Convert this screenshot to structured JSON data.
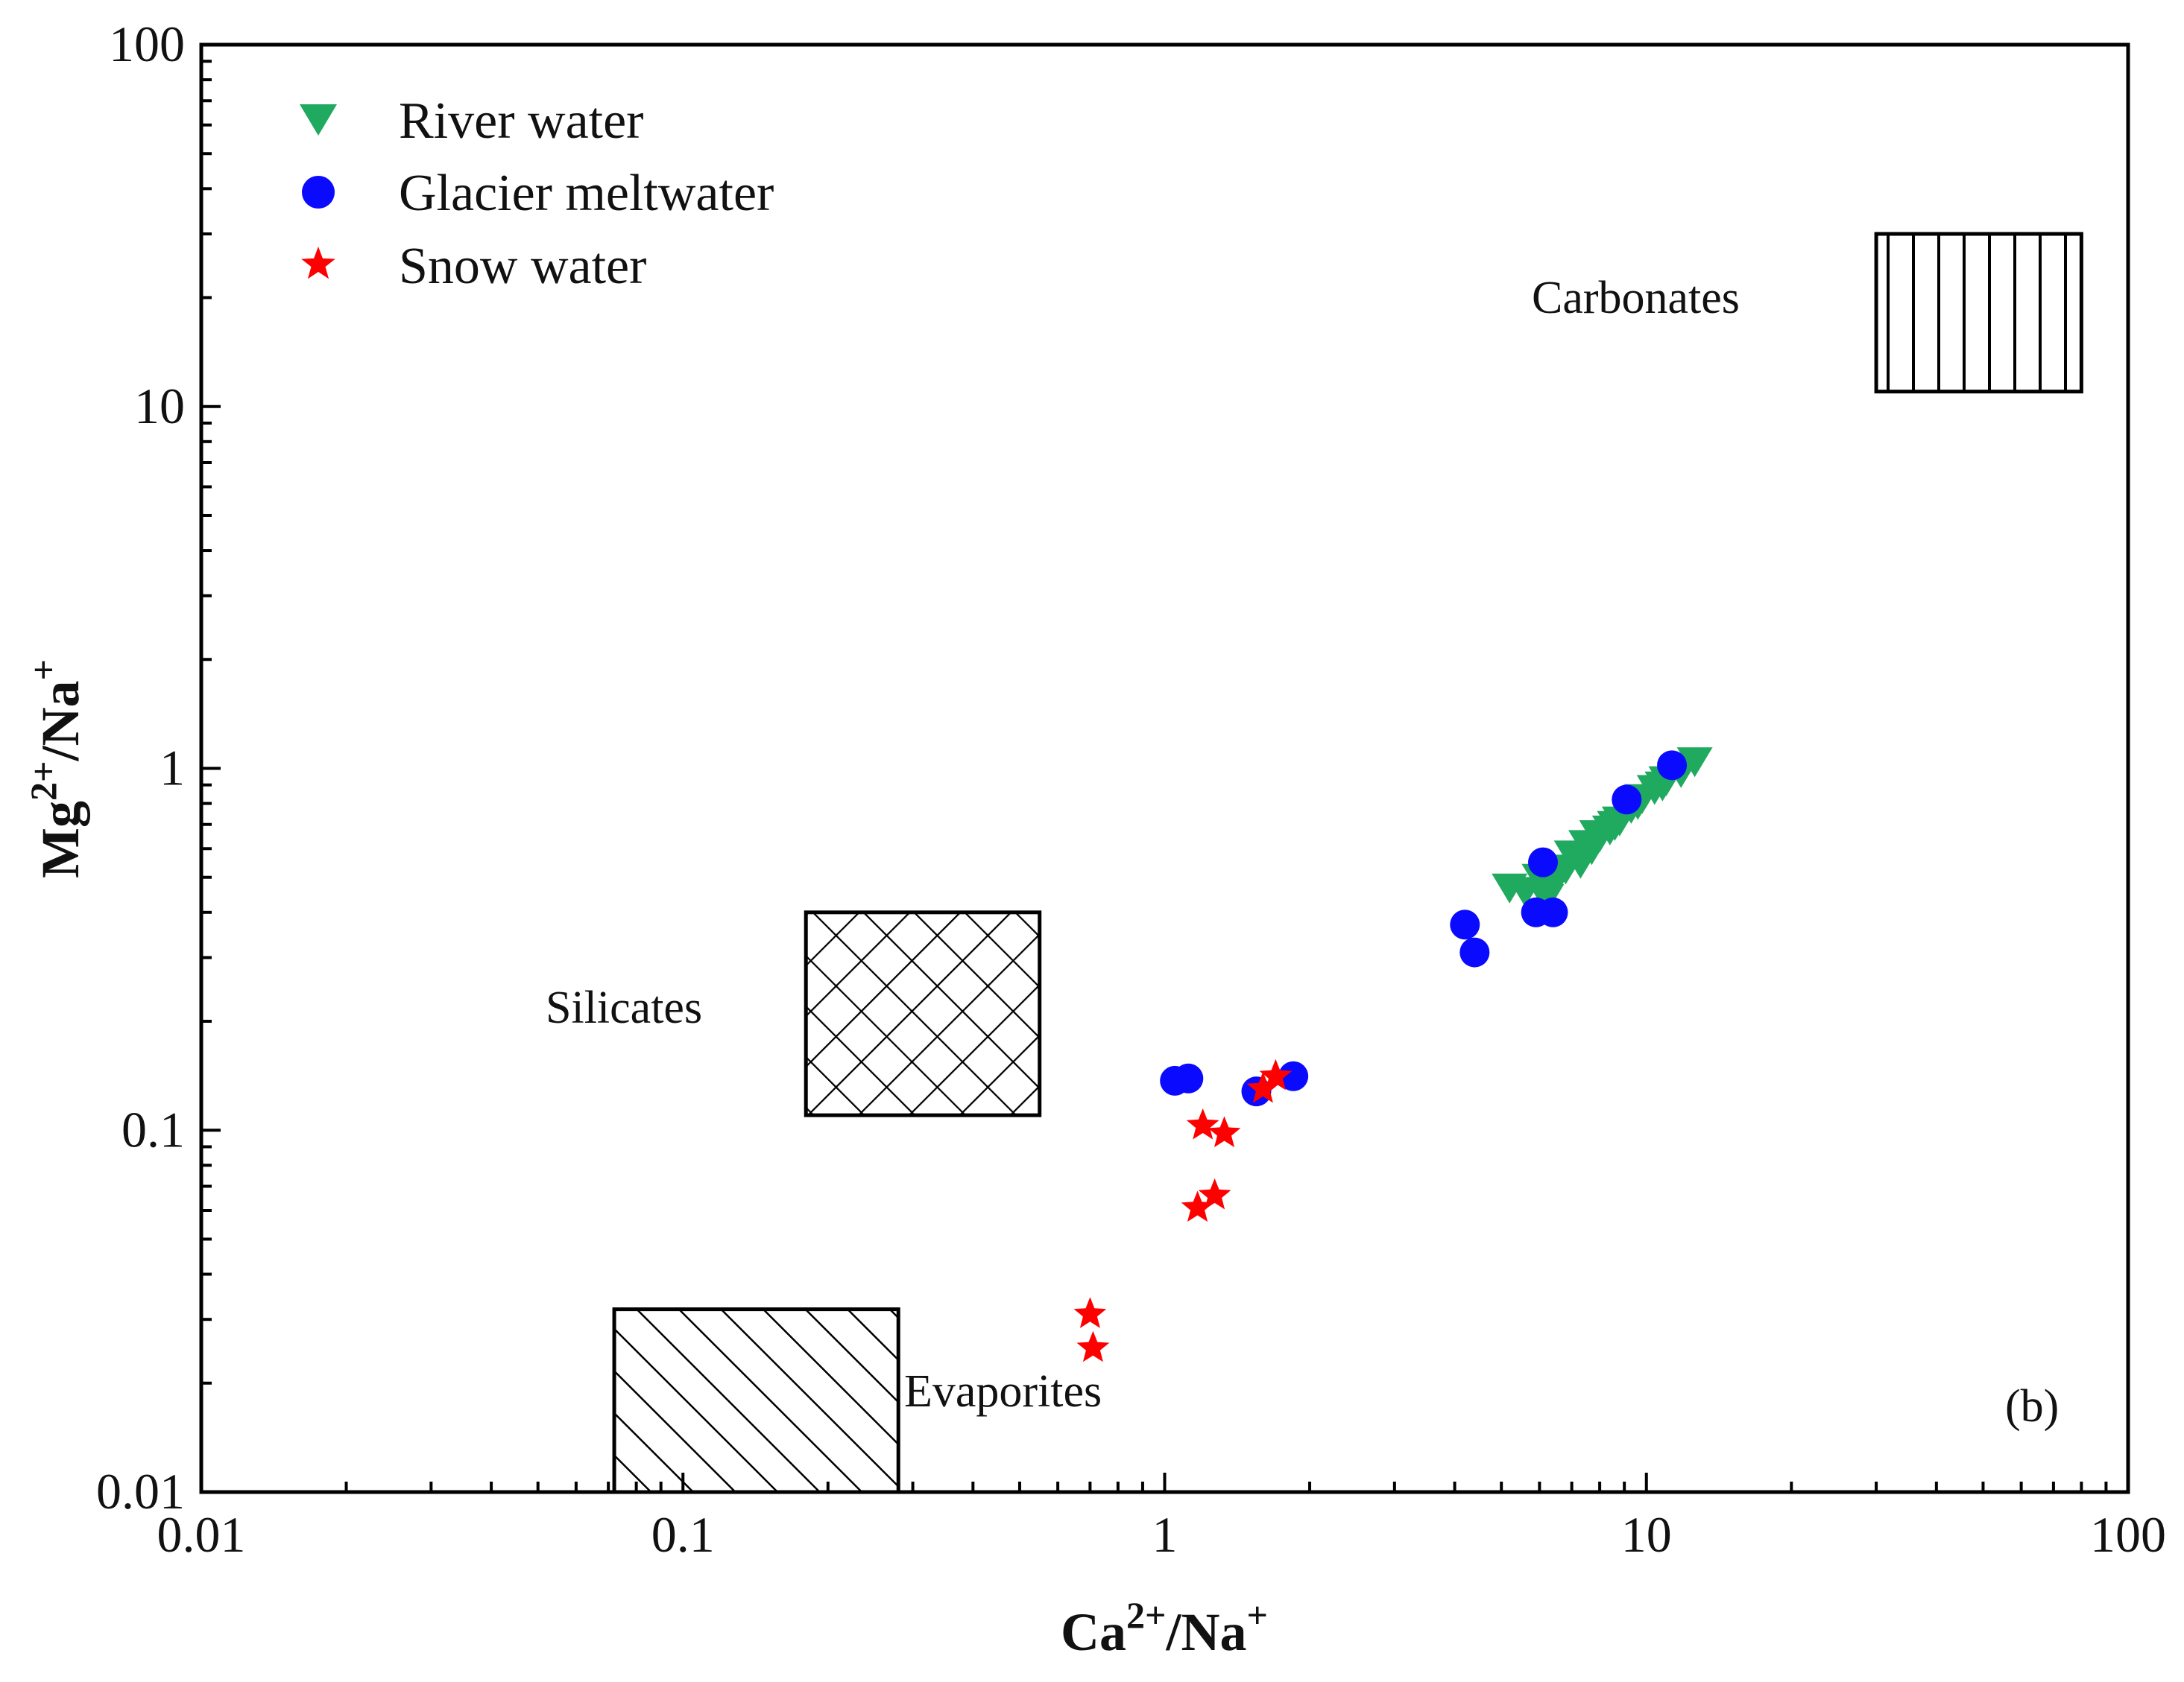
{
  "chart_data": {
    "type": "scatter",
    "panel_label": "(b)",
    "x_scale": "log",
    "y_scale": "log",
    "xlim": [
      0.01,
      100
    ],
    "ylim": [
      0.01,
      100
    ],
    "x_ticks": [
      {
        "value": 0.01,
        "label": "0.01"
      },
      {
        "value": 0.1,
        "label": "0.1"
      },
      {
        "value": 1,
        "label": "1"
      },
      {
        "value": 10,
        "label": "10"
      },
      {
        "value": 100,
        "label": "100"
      }
    ],
    "y_ticks": [
      {
        "value": 0.01,
        "label": "0.01"
      },
      {
        "value": 0.1,
        "label": "0.1"
      },
      {
        "value": 1,
        "label": "1"
      },
      {
        "value": 10,
        "label": "10"
      },
      {
        "value": 100,
        "label": "100"
      }
    ],
    "xlabel": {
      "base1": "Ca",
      "sup1": "2+",
      "base2": "/Na",
      "sup2": "+"
    },
    "ylabel": {
      "base1": "Mg",
      "sup1": "2+",
      "base2": "/Na",
      "sup2": "+"
    },
    "legend_position": "top-left",
    "series": [
      {
        "name": "River water",
        "marker": "triangle-down",
        "color": "#1faa5f",
        "points": [
          [
            5.2,
            0.47
          ],
          [
            5.6,
            0.46
          ],
          [
            6.0,
            0.5
          ],
          [
            6.4,
            0.48
          ],
          [
            6.8,
            0.53
          ],
          [
            7.0,
            0.58
          ],
          [
            7.3,
            0.55
          ],
          [
            7.7,
            0.6
          ],
          [
            8.0,
            0.65
          ],
          [
            8.4,
            0.68
          ],
          [
            8.8,
            0.72
          ],
          [
            9.3,
            0.78
          ],
          [
            9.8,
            0.83
          ],
          [
            10.4,
            0.88
          ],
          [
            11.0,
            0.93
          ],
          [
            11.8,
            0.98
          ],
          [
            12.6,
            1.05
          ],
          [
            6.2,
            0.44
          ],
          [
            7.5,
            0.62
          ],
          [
            8.6,
            0.7
          ],
          [
            9.6,
            0.8
          ],
          [
            10.8,
            0.9
          ],
          [
            6.6,
            0.52
          ],
          [
            7.9,
            0.66
          ]
        ]
      },
      {
        "name": "Glacier meltwater",
        "marker": "circle",
        "color": "#0a0aff",
        "points": [
          [
            11.3,
            1.02
          ],
          [
            9.1,
            0.82
          ],
          [
            6.1,
            0.55
          ],
          [
            5.9,
            0.4
          ],
          [
            6.4,
            0.4
          ],
          [
            4.2,
            0.37
          ],
          [
            4.4,
            0.31
          ],
          [
            1.05,
            0.137
          ],
          [
            1.12,
            0.139
          ],
          [
            1.55,
            0.128
          ],
          [
            1.85,
            0.141
          ]
        ]
      },
      {
        "name": "Snow water",
        "marker": "star",
        "color": "#ff0000",
        "points": [
          [
            1.6,
            0.13
          ],
          [
            1.7,
            0.141
          ],
          [
            1.2,
            0.103
          ],
          [
            1.33,
            0.098
          ],
          [
            1.27,
            0.066
          ],
          [
            1.17,
            0.061
          ],
          [
            0.7,
            0.031
          ],
          [
            0.71,
            0.025
          ]
        ]
      }
    ],
    "regions": [
      {
        "name": "Carbonates",
        "pattern": "vertical",
        "x": [
          30,
          80
        ],
        "y": [
          11,
          30
        ],
        "label_anchor": "left"
      },
      {
        "name": "Silicates",
        "pattern": "crosshatch",
        "x": [
          0.18,
          0.55
        ],
        "y": [
          0.11,
          0.4
        ],
        "label_anchor": "left"
      },
      {
        "name": "Evaporites",
        "pattern": "diagonal",
        "x": [
          0.072,
          0.28
        ],
        "y": [
          0.01,
          0.032
        ],
        "label_anchor": "right"
      }
    ]
  }
}
